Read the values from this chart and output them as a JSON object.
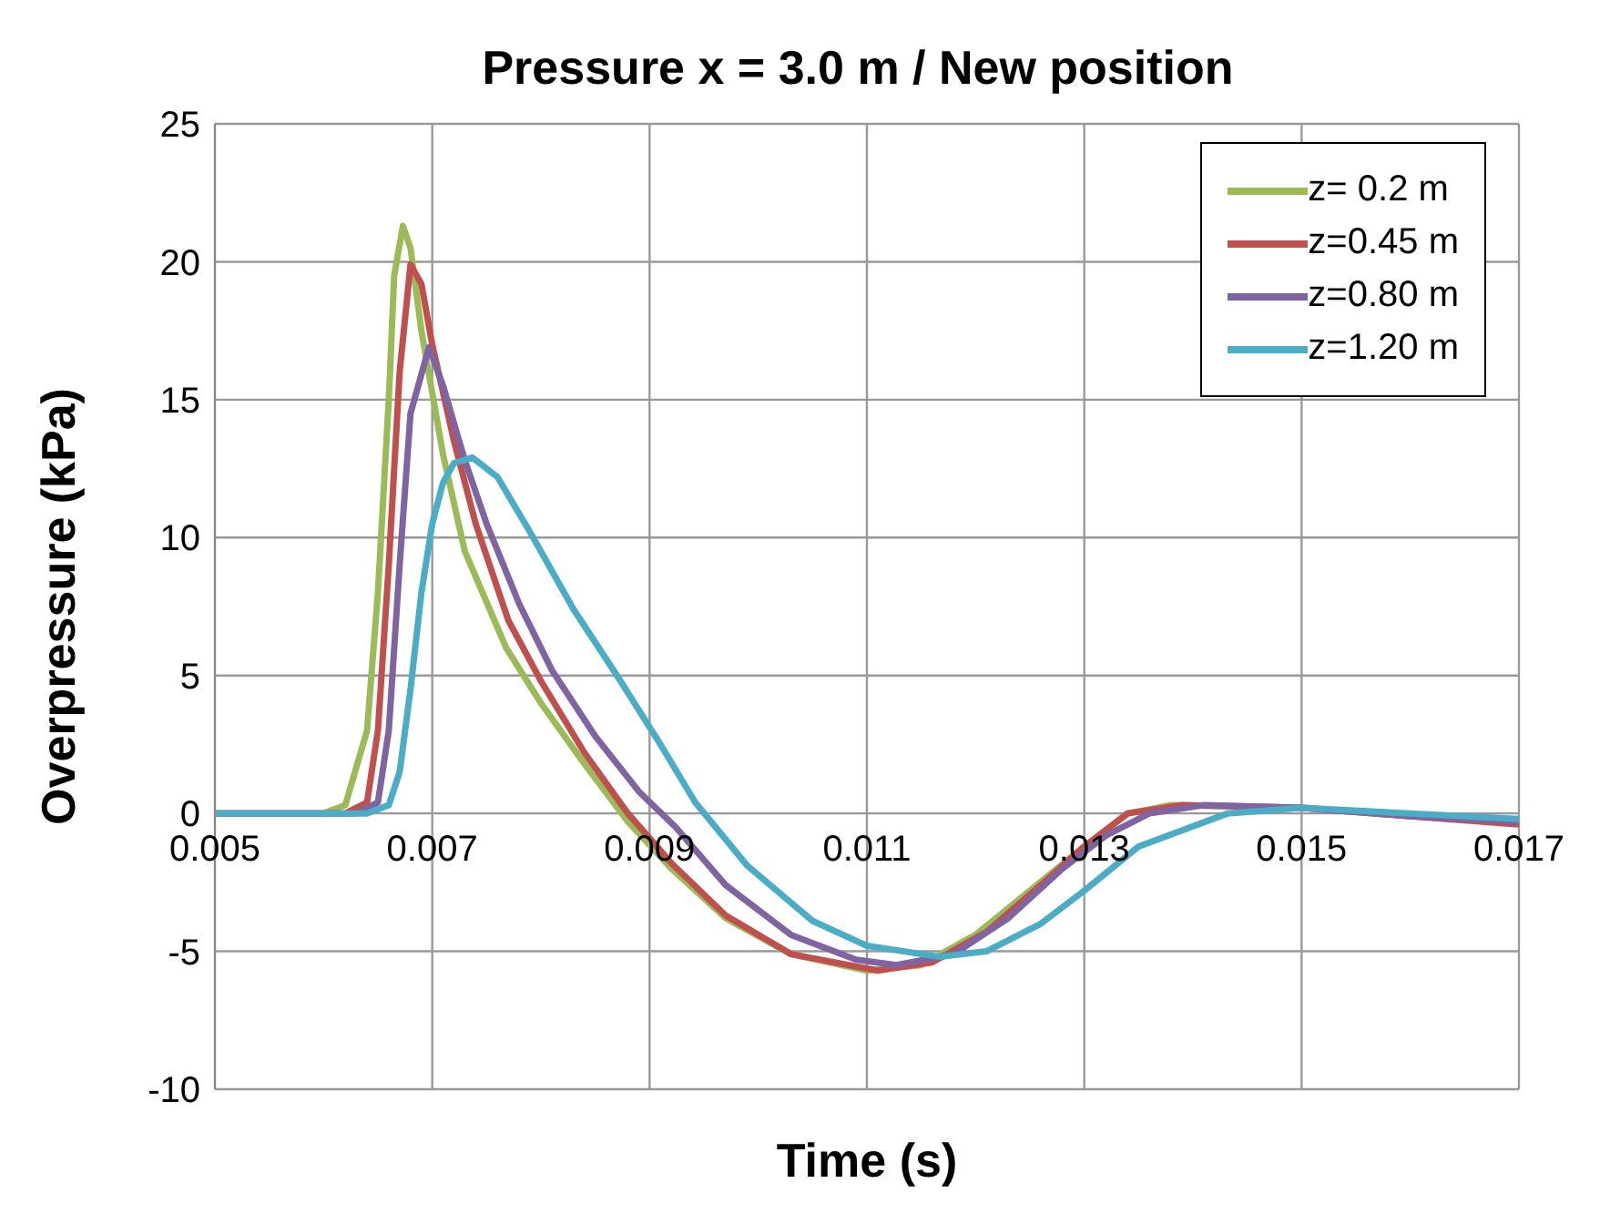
{
  "chart_data": {
    "type": "line",
    "title": "Pressure x = 3.0 m / New position",
    "xlabel": "Time (s)",
    "ylabel": "Overpressure (kPa)",
    "xlim": [
      0.005,
      0.017
    ],
    "xticks": [
      0.005,
      0.007,
      0.009,
      0.011,
      0.013,
      0.015,
      0.017
    ],
    "ylim": [
      -10,
      25
    ],
    "yticks": [
      -10,
      -5,
      0,
      5,
      10,
      15,
      20,
      25
    ],
    "grid": true,
    "legend": "top right",
    "marker": "none",
    "line_style": "solid",
    "series": [
      {
        "name": "z= 0.2 m",
        "color": "#9bbb59",
        "x": [
          0.005,
          0.006,
          0.0062,
          0.0064,
          0.0065,
          0.0066,
          0.00665,
          0.00673,
          0.0068,
          0.0069,
          0.0071,
          0.0073,
          0.00768,
          0.008,
          0.0084,
          0.0088,
          0.0092,
          0.0097,
          0.0103,
          0.011,
          0.0115,
          0.012,
          0.0125,
          0.013,
          0.0134,
          0.0138,
          0.015
        ],
        "values": [
          0,
          0,
          0.3,
          3,
          8,
          15,
          19.5,
          21.3,
          20.5,
          17.5,
          13,
          9.5,
          6,
          4,
          1.8,
          -0.3,
          -2,
          -3.8,
          -5.1,
          -5.7,
          -5.5,
          -4.4,
          -2.8,
          -1.2,
          0,
          0.3,
          0.2
        ]
      },
      {
        "name": "z=0.45 m",
        "color": "#c0504d",
        "x": [
          0.005,
          0.0062,
          0.0064,
          0.0065,
          0.0066,
          0.0067,
          0.0068,
          0.0069,
          0.007,
          0.0072,
          0.0074,
          0.0077,
          0.008,
          0.0084,
          0.0088,
          0.0092,
          0.0097,
          0.0103,
          0.0111,
          0.0116,
          0.0121,
          0.0126,
          0.013,
          0.0134,
          0.0139,
          0.015,
          0.016,
          0.017
        ],
        "values": [
          0,
          0,
          0.4,
          3,
          9,
          16,
          19.9,
          19.2,
          17,
          13.5,
          10.5,
          7,
          4.8,
          2.2,
          0,
          -1.8,
          -3.7,
          -5.1,
          -5.7,
          -5.4,
          -4.3,
          -2.6,
          -1.2,
          0,
          0.3,
          0.2,
          -0.1,
          -0.4
        ]
      },
      {
        "name": "z=0.80 m",
        "color": "#8064a2",
        "x": [
          0.005,
          0.0063,
          0.0065,
          0.0066,
          0.0067,
          0.0068,
          0.00697,
          0.0071,
          0.0073,
          0.0075,
          0.0078,
          0.0081,
          0.0085,
          0.0089,
          0.00924,
          0.0097,
          0.0103,
          0.0109,
          0.01127,
          0.0118,
          0.0123,
          0.0128,
          0.0132,
          0.0136,
          0.0141,
          0.015,
          0.016,
          0.017
        ],
        "values": [
          0,
          0,
          0.4,
          3,
          9,
          14.5,
          16.9,
          15.5,
          12.8,
          10.5,
          7.6,
          5.2,
          2.8,
          0.8,
          -0.5,
          -2.6,
          -4.4,
          -5.3,
          -5.5,
          -5.1,
          -3.8,
          -2,
          -0.8,
          0,
          0.3,
          0.2,
          -0.1,
          -0.3
        ]
      },
      {
        "name": "z=1.20 m",
        "color": "#4bacc6",
        "x": [
          0.005,
          0.0064,
          0.0066,
          0.0067,
          0.0068,
          0.0069,
          0.007,
          0.0071,
          0.0072,
          0.00737,
          0.0076,
          0.0079,
          0.0083,
          0.0087,
          0.0091,
          0.00942,
          0.0099,
          0.0105,
          0.011,
          0.01167,
          0.0121,
          0.0126,
          0.013,
          0.0135,
          0.01432,
          0.015,
          0.016,
          0.017
        ],
        "values": [
          0,
          0,
          0.3,
          1.5,
          4.5,
          8,
          10.5,
          12,
          12.7,
          12.9,
          12.2,
          10.2,
          7.4,
          5,
          2.5,
          0.4,
          -1.9,
          -3.9,
          -4.8,
          -5.2,
          -5,
          -4,
          -2.8,
          -1.2,
          0,
          0.2,
          0,
          -0.2
        ]
      }
    ]
  }
}
